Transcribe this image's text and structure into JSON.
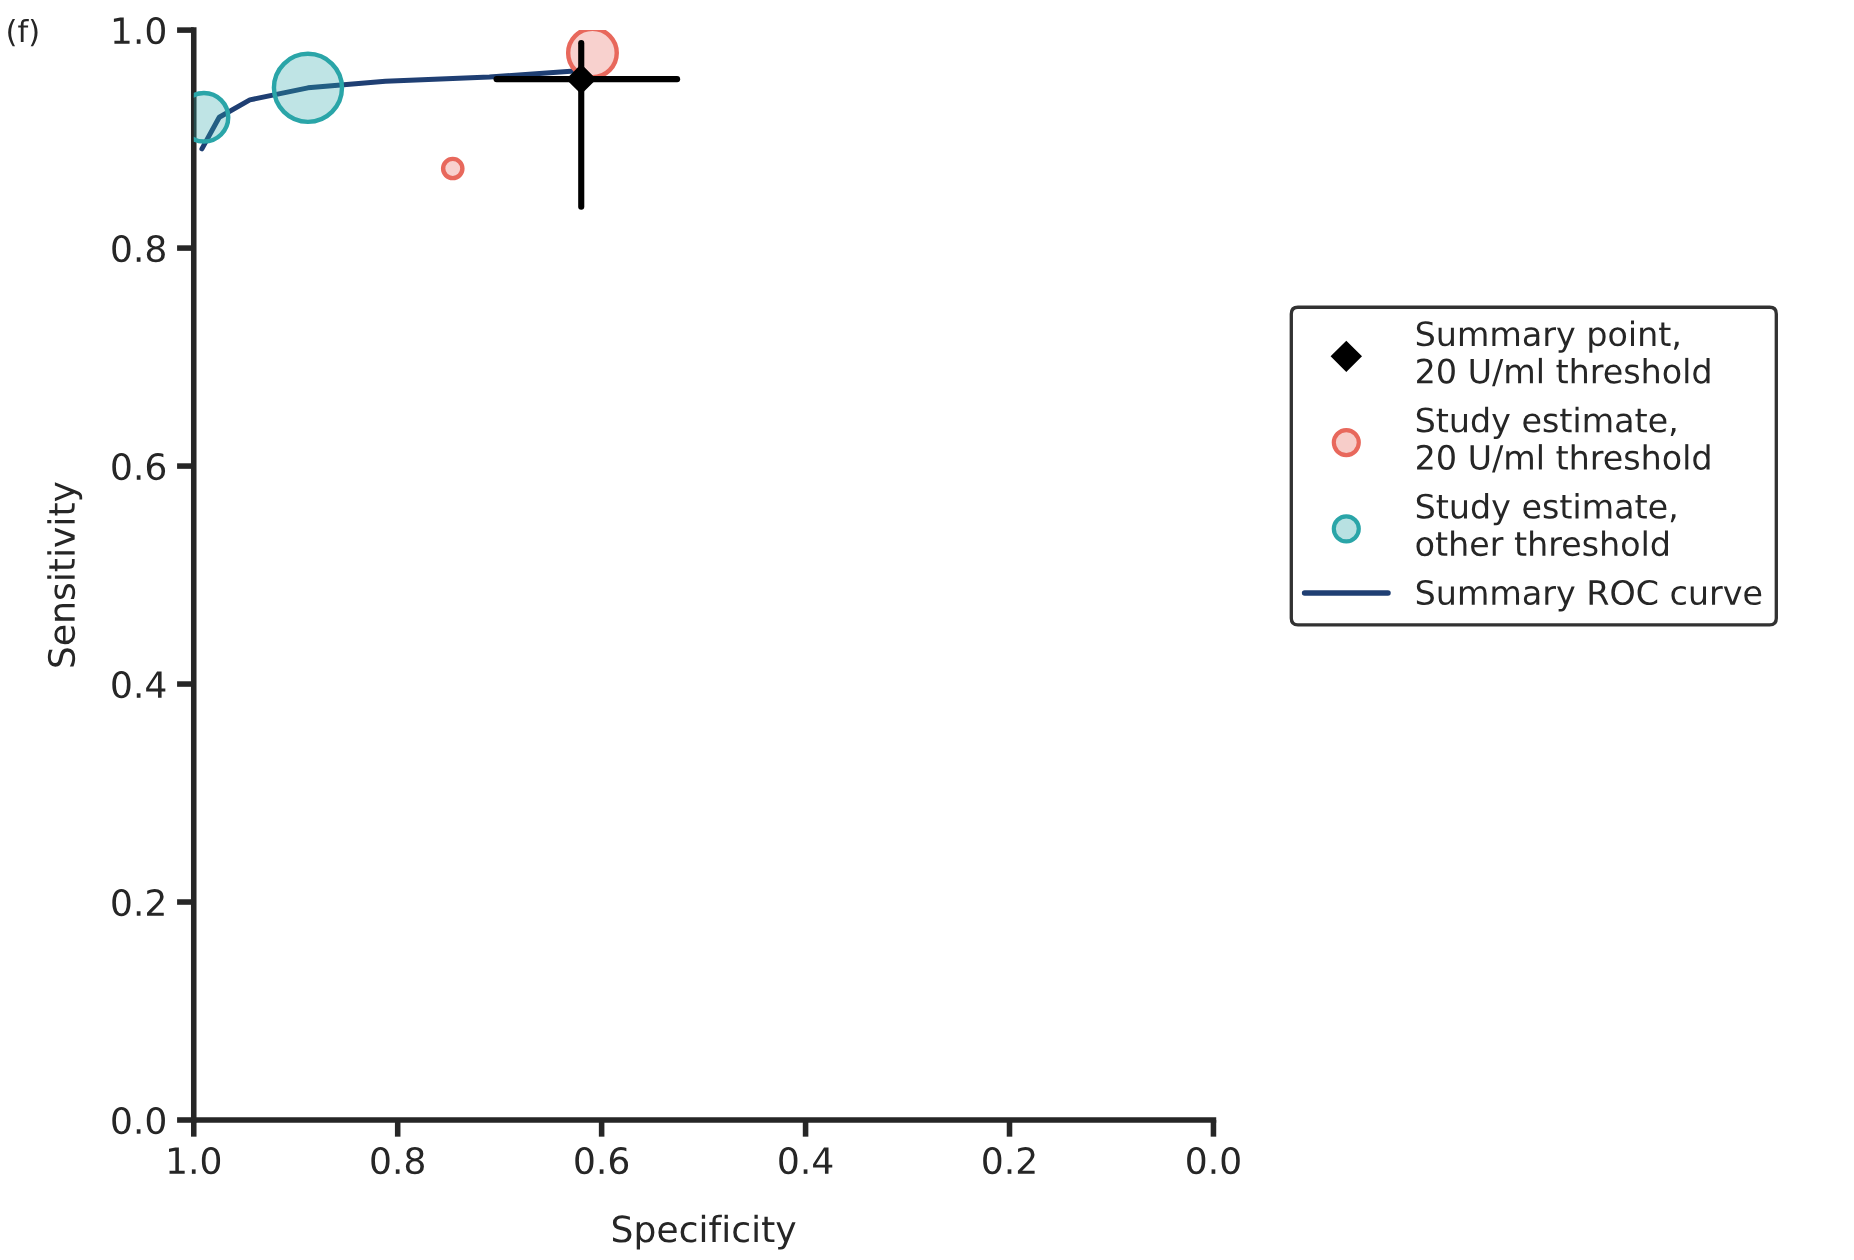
{
  "chart_data": {
    "type": "scatter",
    "xlabel": "Specificity",
    "ylabel": "Sensitivity",
    "annotations": [
      "(f)"
    ],
    "xlim": [
      1.0,
      0.0
    ],
    "ylim": [
      0.0,
      1.0
    ],
    "xticks": [
      {
        "value": 1.0,
        "label": "1.0"
      },
      0.8,
      0.6,
      0.4,
      0.2,
      {
        "value": 0.0,
        "label": "0.0"
      }
    ],
    "yticks": [
      {
        "value": 0.0,
        "label": "0.0"
      },
      0.2,
      0.4,
      0.6,
      0.8,
      {
        "value": 1.0,
        "label": "1.0"
      }
    ],
    "grid": false,
    "legend": "right",
    "series": [
      {
        "name": "Summary ROC curve",
        "type": "line",
        "color": "#1f3f73",
        "marker": "none",
        "line_style": "solid",
        "x": [
          0.992,
          0.975,
          0.945,
          0.888,
          0.812,
          0.71,
          0.62
        ],
        "values": [
          0.891,
          0.92,
          0.936,
          0.947,
          0.953,
          0.957,
          0.963
        ]
      },
      {
        "name": "Study estimate,\nother threshold",
        "color": "#2aa5a8",
        "marker": "circle",
        "x": [
          0.99,
          0.888
        ],
        "values": [
          0.92,
          0.947
        ],
        "sizes": [
          0.51,
          1
        ]
      },
      {
        "name": "Study estimate,\n20 U/ml threshold",
        "color": "#e8685c",
        "marker": "circle",
        "x": [
          0.609,
          0.746
        ],
        "values": [
          0.979,
          0.873
        ],
        "sizes": [
          0.51,
          0.08
        ]
      },
      {
        "name": "Summary point,\n20 U/ml threshold",
        "color": "#000000",
        "marker": "diamond",
        "x": [
          0.62
        ],
        "values": [
          0.955
        ],
        "errors": [
          [
            0.838,
            0.988
          ]
        ],
        "xerrors": [
          [
            0.526,
            0.703
          ]
        ]
      }
    ]
  }
}
